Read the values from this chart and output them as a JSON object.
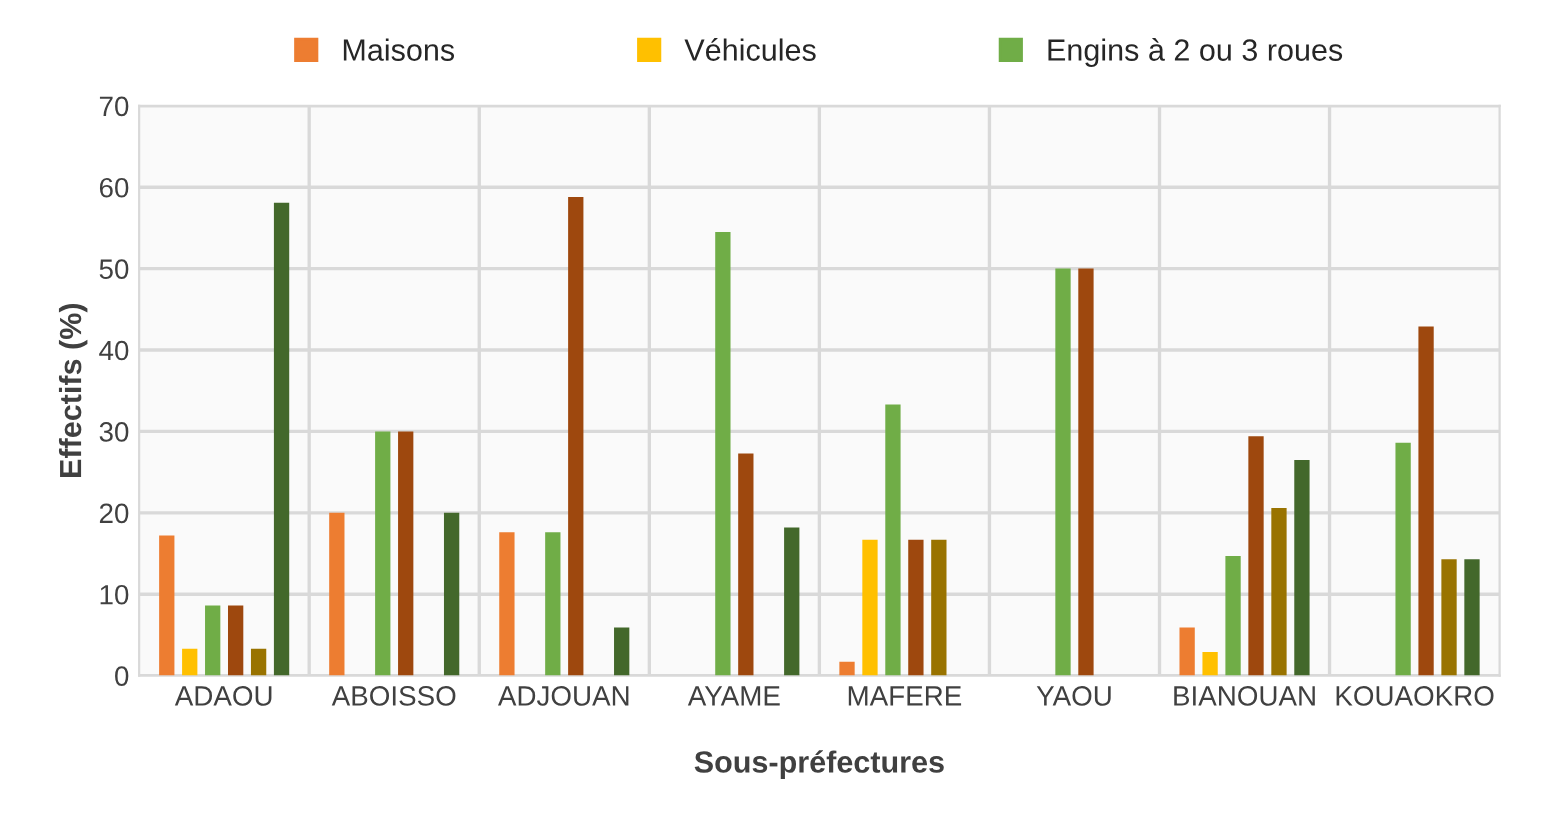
{
  "chart_data": {
    "type": "bar",
    "xlabel": "Sous-préfectures",
    "ylabel": "Effectifs (%)",
    "categories": [
      "ADAOU",
      "ABOISSO",
      "ADJOUAN",
      "AYAME",
      "MAFERE",
      "YAOU",
      "BIANOUAN",
      "KOUAOKRO"
    ],
    "series": [
      {
        "name": "Maisons",
        "color": "#ed7d31",
        "values": [
          17.2,
          20,
          17.6,
          null,
          1.7,
          null,
          5.9,
          null
        ]
      },
      {
        "name": "Véhicules",
        "color": "#ffc000",
        "values": [
          3.3,
          null,
          null,
          null,
          16.7,
          null,
          2.9,
          null
        ]
      },
      {
        "name": "Engins à 2 ou 3 roues",
        "color": "#70ad47",
        "values": [
          8.6,
          30,
          17.6,
          54.5,
          33.3,
          50,
          14.7,
          28.6
        ]
      },
      {
        "color": "#9e480e",
        "values": [
          8.6,
          30,
          58.8,
          27.3,
          16.7,
          50,
          29.4,
          42.9
        ]
      },
      {
        "color": "#997300",
        "values": [
          3.3,
          null,
          null,
          null,
          16.7,
          null,
          20.6,
          14.3
        ]
      },
      {
        "color": "#43682b",
        "values": [
          58.1,
          20,
          5.9,
          18.2,
          null,
          null,
          26.5,
          14.3
        ]
      }
    ],
    "ylim": [
      0,
      70
    ],
    "yticks": [
      0,
      10,
      20,
      30,
      40,
      50,
      60,
      70
    ],
    "grid": "y",
    "legend": "top"
  }
}
